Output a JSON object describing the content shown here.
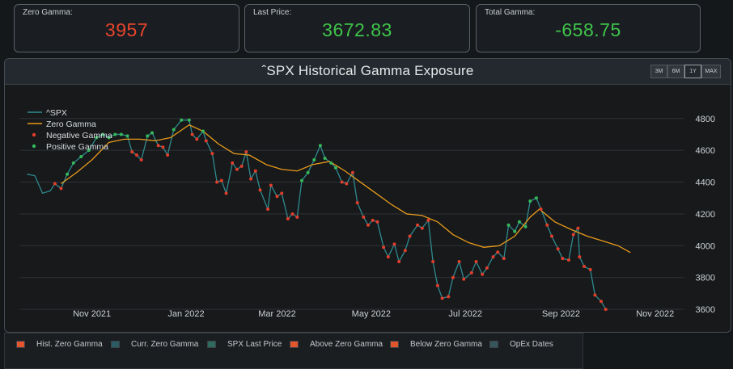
{
  "stats": {
    "zero_gamma": {
      "label": "Zero Gamma:",
      "value": "3957",
      "color": "#e8452c"
    },
    "last_price": {
      "label": "Last Price:",
      "value": "3672.83",
      "color": "#3fc44a"
    },
    "total_gamma": {
      "label": "Total Gamma:",
      "value": "-658.75",
      "color": "#3fc44a"
    }
  },
  "panel": {
    "title": "ˆSPX Historical Gamma Exposure",
    "range_buttons": [
      "3M",
      "6M",
      "1Y",
      "MAX"
    ],
    "active_range": "1Y"
  },
  "chart_data": {
    "type": "line",
    "title": "ˆSPX Historical Gamma Exposure",
    "x_ticks": [
      "Nov 2021",
      "Jan 2022",
      "Mar 2022",
      "May 2022",
      "Jul 2022",
      "Sep 2022",
      "Nov 2022"
    ],
    "y_ticks": [
      3600,
      3800,
      4000,
      4200,
      4400,
      4600,
      4800
    ],
    "ylim": [
      3560,
      4880
    ],
    "xlim": [
      "2021-09-15",
      "2022-11-20"
    ],
    "grid": true,
    "legend_position": "top-left",
    "legend": [
      "^SPX",
      "Zero Gamma",
      "Negative Gamma",
      "Positive Gamma"
    ],
    "colors": {
      "spx": "#2f8a8f",
      "zero_gamma": "#e89a1a",
      "negative": "#e23d2b",
      "positive": "#35b85a"
    },
    "spx": [
      [
        "2021-09-20",
        4450
      ],
      [
        "2021-09-25",
        4440
      ],
      [
        "2021-09-30",
        4330
      ],
      [
        "2021-10-05",
        4345
      ],
      [
        "2021-10-08",
        4390
      ],
      [
        "2021-10-12",
        4360
      ],
      [
        "2021-10-16",
        4450
      ],
      [
        "2021-10-20",
        4520
      ],
      [
        "2021-10-25",
        4560
      ],
      [
        "2021-10-30",
        4600
      ],
      [
        "2021-11-04",
        4680
      ],
      [
        "2021-11-08",
        4700
      ],
      [
        "2021-11-12",
        4680
      ],
      [
        "2021-11-16",
        4700
      ],
      [
        "2021-11-20",
        4700
      ],
      [
        "2021-11-24",
        4690
      ],
      [
        "2021-11-27",
        4590
      ],
      [
        "2021-11-30",
        4570
      ],
      [
        "2021-12-03",
        4540
      ],
      [
        "2021-12-07",
        4690
      ],
      [
        "2021-12-10",
        4710
      ],
      [
        "2021-12-14",
        4630
      ],
      [
        "2021-12-17",
        4620
      ],
      [
        "2021-12-20",
        4570
      ],
      [
        "2021-12-24",
        4730
      ],
      [
        "2021-12-29",
        4790
      ],
      [
        "2022-01-03",
        4790
      ],
      [
        "2022-01-05",
        4700
      ],
      [
        "2022-01-08",
        4670
      ],
      [
        "2022-01-12",
        4720
      ],
      [
        "2022-01-14",
        4660
      ],
      [
        "2022-01-18",
        4580
      ],
      [
        "2022-01-21",
        4400
      ],
      [
        "2022-01-24",
        4410
      ],
      [
        "2022-01-27",
        4330
      ],
      [
        "2022-01-31",
        4520
      ],
      [
        "2022-02-03",
        4480
      ],
      [
        "2022-02-06",
        4500
      ],
      [
        "2022-02-09",
        4590
      ],
      [
        "2022-02-12",
        4420
      ],
      [
        "2022-02-15",
        4470
      ],
      [
        "2022-02-18",
        4350
      ],
      [
        "2022-02-23",
        4230
      ],
      [
        "2022-02-25",
        4380
      ],
      [
        "2022-03-01",
        4310
      ],
      [
        "2022-03-04",
        4330
      ],
      [
        "2022-03-08",
        4170
      ],
      [
        "2022-03-11",
        4200
      ],
      [
        "2022-03-14",
        4180
      ],
      [
        "2022-03-17",
        4410
      ],
      [
        "2022-03-21",
        4460
      ],
      [
        "2022-03-25",
        4540
      ],
      [
        "2022-03-29",
        4630
      ],
      [
        "2022-04-01",
        4550
      ],
      [
        "2022-04-05",
        4520
      ],
      [
        "2022-04-08",
        4490
      ],
      [
        "2022-04-12",
        4400
      ],
      [
        "2022-04-15",
        4390
      ],
      [
        "2022-04-19",
        4460
      ],
      [
        "2022-04-22",
        4270
      ],
      [
        "2022-04-26",
        4180
      ],
      [
        "2022-04-29",
        4130
      ],
      [
        "2022-05-02",
        4160
      ],
      [
        "2022-05-05",
        4150
      ],
      [
        "2022-05-09",
        3990
      ],
      [
        "2022-05-12",
        3930
      ],
      [
        "2022-05-16",
        4010
      ],
      [
        "2022-05-19",
        3900
      ],
      [
        "2022-05-23",
        3970
      ],
      [
        "2022-05-26",
        4060
      ],
      [
        "2022-05-31",
        4130
      ],
      [
        "2022-06-03",
        4110
      ],
      [
        "2022-06-07",
        4160
      ],
      [
        "2022-06-10",
        3900
      ],
      [
        "2022-06-13",
        3750
      ],
      [
        "2022-06-16",
        3670
      ],
      [
        "2022-06-20",
        3680
      ],
      [
        "2022-06-23",
        3800
      ],
      [
        "2022-06-27",
        3900
      ],
      [
        "2022-06-30",
        3790
      ],
      [
        "2022-07-05",
        3830
      ],
      [
        "2022-07-08",
        3900
      ],
      [
        "2022-07-12",
        3820
      ],
      [
        "2022-07-15",
        3860
      ],
      [
        "2022-07-19",
        3930
      ],
      [
        "2022-07-22",
        3960
      ],
      [
        "2022-07-26",
        3920
      ],
      [
        "2022-07-29",
        4130
      ],
      [
        "2022-08-02",
        4090
      ],
      [
        "2022-08-05",
        4150
      ],
      [
        "2022-08-09",
        4120
      ],
      [
        "2022-08-12",
        4280
      ],
      [
        "2022-08-16",
        4300
      ],
      [
        "2022-08-19",
        4230
      ],
      [
        "2022-08-23",
        4130
      ],
      [
        "2022-08-26",
        4060
      ],
      [
        "2022-08-30",
        3980
      ],
      [
        "2022-09-02",
        3920
      ],
      [
        "2022-09-06",
        3910
      ],
      [
        "2022-09-09",
        4070
      ],
      [
        "2022-09-12",
        4110
      ],
      [
        "2022-09-13",
        3930
      ],
      [
        "2022-09-16",
        3870
      ],
      [
        "2022-09-20",
        3850
      ],
      [
        "2022-09-23",
        3690
      ],
      [
        "2022-09-27",
        3650
      ],
      [
        "2022-09-30",
        3600
      ]
    ],
    "zero_gamma_line": [
      [
        "2021-10-12",
        4390
      ],
      [
        "2021-10-22",
        4460
      ],
      [
        "2021-11-01",
        4540
      ],
      [
        "2021-11-12",
        4650
      ],
      [
        "2021-11-22",
        4670
      ],
      [
        "2021-12-02",
        4670
      ],
      [
        "2021-12-12",
        4660
      ],
      [
        "2021-12-22",
        4680
      ],
      [
        "2022-01-03",
        4760
      ],
      [
        "2022-01-12",
        4720
      ],
      [
        "2022-01-22",
        4640
      ],
      [
        "2022-02-01",
        4580
      ],
      [
        "2022-02-11",
        4570
      ],
      [
        "2022-02-22",
        4510
      ],
      [
        "2022-03-04",
        4480
      ],
      [
        "2022-03-14",
        4470
      ],
      [
        "2022-03-24",
        4510
      ],
      [
        "2022-04-04",
        4530
      ],
      [
        "2022-04-14",
        4470
      ],
      [
        "2022-04-24",
        4400
      ],
      [
        "2022-05-04",
        4330
      ],
      [
        "2022-05-14",
        4260
      ],
      [
        "2022-05-24",
        4200
      ],
      [
        "2022-06-03",
        4190
      ],
      [
        "2022-06-13",
        4150
      ],
      [
        "2022-06-23",
        4070
      ],
      [
        "2022-07-03",
        4020
      ],
      [
        "2022-07-13",
        3990
      ],
      [
        "2022-07-23",
        4000
      ],
      [
        "2022-08-02",
        4060
      ],
      [
        "2022-08-12",
        4180
      ],
      [
        "2022-08-18",
        4230
      ],
      [
        "2022-08-28",
        4150
      ],
      [
        "2022-09-08",
        4100
      ],
      [
        "2022-09-18",
        4060
      ],
      [
        "2022-09-28",
        4030
      ],
      [
        "2022-10-08",
        4000
      ],
      [
        "2022-10-16",
        3957
      ]
    ],
    "negative_gamma": [
      [
        "2021-10-08",
        4390
      ],
      [
        "2021-10-12",
        4360
      ],
      [
        "2021-11-27",
        4590
      ],
      [
        "2021-11-30",
        4570
      ],
      [
        "2021-12-03",
        4540
      ],
      [
        "2021-12-14",
        4630
      ],
      [
        "2021-12-17",
        4620
      ],
      [
        "2021-12-20",
        4570
      ],
      [
        "2022-01-05",
        4700
      ],
      [
        "2022-01-08",
        4670
      ],
      [
        "2022-01-14",
        4660
      ],
      [
        "2022-01-18",
        4580
      ],
      [
        "2022-01-21",
        4400
      ],
      [
        "2022-01-24",
        4410
      ],
      [
        "2022-01-27",
        4330
      ],
      [
        "2022-01-31",
        4520
      ],
      [
        "2022-02-03",
        4480
      ],
      [
        "2022-02-06",
        4500
      ],
      [
        "2022-02-09",
        4590
      ],
      [
        "2022-02-12",
        4420
      ],
      [
        "2022-02-15",
        4470
      ],
      [
        "2022-02-18",
        4350
      ],
      [
        "2022-02-23",
        4230
      ],
      [
        "2022-02-25",
        4380
      ],
      [
        "2022-03-01",
        4310
      ],
      [
        "2022-03-04",
        4330
      ],
      [
        "2022-03-08",
        4170
      ],
      [
        "2022-03-11",
        4200
      ],
      [
        "2022-03-14",
        4180
      ],
      [
        "2022-04-12",
        4400
      ],
      [
        "2022-04-15",
        4390
      ],
      [
        "2022-04-19",
        4460
      ],
      [
        "2022-04-22",
        4270
      ],
      [
        "2022-04-26",
        4180
      ],
      [
        "2022-04-29",
        4130
      ],
      [
        "2022-05-02",
        4160
      ],
      [
        "2022-05-05",
        4150
      ],
      [
        "2022-05-09",
        3990
      ],
      [
        "2022-05-12",
        3930
      ],
      [
        "2022-05-16",
        4010
      ],
      [
        "2022-05-19",
        3900
      ],
      [
        "2022-05-23",
        3970
      ],
      [
        "2022-05-26",
        4060
      ],
      [
        "2022-05-31",
        4130
      ],
      [
        "2022-06-03",
        4110
      ],
      [
        "2022-06-07",
        4160
      ],
      [
        "2022-06-10",
        3900
      ],
      [
        "2022-06-13",
        3750
      ],
      [
        "2022-06-16",
        3670
      ],
      [
        "2022-06-20",
        3680
      ],
      [
        "2022-06-23",
        3800
      ],
      [
        "2022-06-27",
        3900
      ],
      [
        "2022-06-30",
        3790
      ],
      [
        "2022-07-05",
        3830
      ],
      [
        "2022-07-08",
        3900
      ],
      [
        "2022-07-12",
        3820
      ],
      [
        "2022-07-15",
        3860
      ],
      [
        "2022-07-19",
        3930
      ],
      [
        "2022-07-22",
        3960
      ],
      [
        "2022-07-26",
        3920
      ],
      [
        "2022-08-19",
        4230
      ],
      [
        "2022-08-23",
        4130
      ],
      [
        "2022-08-26",
        4060
      ],
      [
        "2022-08-30",
        3980
      ],
      [
        "2022-09-02",
        3920
      ],
      [
        "2022-09-06",
        3910
      ],
      [
        "2022-09-09",
        4070
      ],
      [
        "2022-09-12",
        4110
      ],
      [
        "2022-09-13",
        3930
      ],
      [
        "2022-09-16",
        3870
      ],
      [
        "2022-09-20",
        3850
      ],
      [
        "2022-09-23",
        3690
      ],
      [
        "2022-09-27",
        3650
      ],
      [
        "2022-09-30",
        3600
      ]
    ],
    "positive_gamma": [
      [
        "2021-10-16",
        4450
      ],
      [
        "2021-10-20",
        4520
      ],
      [
        "2021-10-25",
        4560
      ],
      [
        "2021-10-30",
        4600
      ],
      [
        "2021-11-04",
        4680
      ],
      [
        "2021-11-08",
        4700
      ],
      [
        "2021-11-12",
        4680
      ],
      [
        "2021-11-16",
        4700
      ],
      [
        "2021-11-20",
        4700
      ],
      [
        "2021-11-24",
        4690
      ],
      [
        "2021-12-07",
        4690
      ],
      [
        "2021-12-10",
        4710
      ],
      [
        "2021-12-24",
        4730
      ],
      [
        "2021-12-29",
        4790
      ],
      [
        "2022-01-03",
        4790
      ],
      [
        "2022-01-12",
        4720
      ],
      [
        "2022-03-17",
        4410
      ],
      [
        "2022-03-21",
        4460
      ],
      [
        "2022-03-25",
        4540
      ],
      [
        "2022-03-29",
        4630
      ],
      [
        "2022-04-01",
        4550
      ],
      [
        "2022-04-05",
        4520
      ],
      [
        "2022-04-08",
        4490
      ],
      [
        "2022-07-29",
        4130
      ],
      [
        "2022-08-02",
        4090
      ],
      [
        "2022-08-05",
        4150
      ],
      [
        "2022-08-09",
        4120
      ],
      [
        "2022-08-12",
        4280
      ],
      [
        "2022-08-16",
        4300
      ]
    ]
  },
  "legend_bar": {
    "items": [
      {
        "label": "Hist. Zero Gamma",
        "color": "#e2562e"
      },
      {
        "label": "Curr. Zero Gamma",
        "color": "#2c5c63"
      },
      {
        "label": "SPX Last Price",
        "color": "#2e6a5e"
      },
      {
        "label": "Above Zero Gamma",
        "color": "#e2562e"
      },
      {
        "label": "Below Zero Gamma",
        "color": "#e2562e"
      },
      {
        "label": "OpEx Dates",
        "color": "#37565c"
      }
    ]
  }
}
